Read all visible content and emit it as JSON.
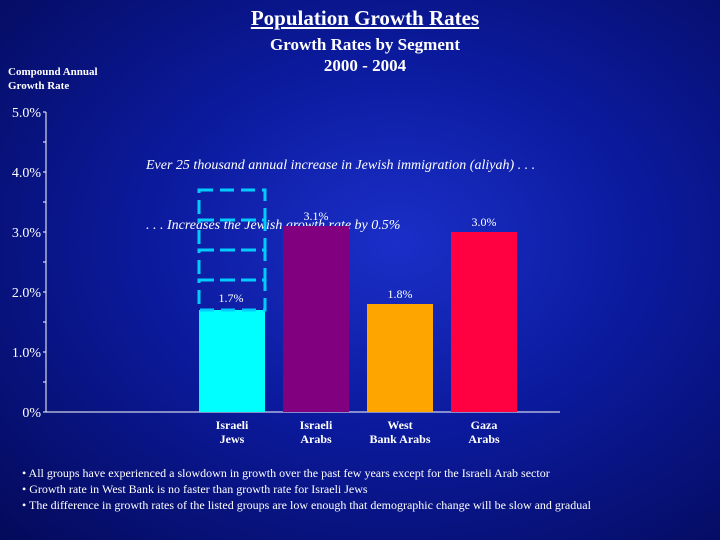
{
  "page": {
    "title": "Population Growth Rates",
    "subtitle_line1": "Growth Rates by Segment",
    "subtitle_line2": "2000 - 2004",
    "ylabel_line1": "Compound Annual",
    "ylabel_line2": "Growth Rate",
    "annotation_line1": "Ever 25 thousand annual increase in Jewish immigration (aliyah) . . .",
    "annotation_line2": ". . . Increases the Jewish growth rate by 0.5%",
    "bullets": [
      "• All groups have experienced a slowdown in growth over the past few years except for the Israeli Arab sector",
      "• Growth rate in West Bank is no faster than growth rate for Israeli Jews",
      "• The difference in growth rates of the listed groups are low enough that demographic change will be slow and gradual"
    ]
  },
  "chart_data": {
    "type": "bar",
    "title": "Population Growth Rates",
    "subtitle": "Growth Rates by Segment 2000 - 2004",
    "ylabel": "Compound Annual Growth Rate",
    "xlabel": "",
    "ylim": [
      0,
      5
    ],
    "yticks": [
      0,
      1,
      2,
      3,
      4,
      5
    ],
    "ytick_labels": [
      "0%",
      "1.0%",
      "2.0%",
      "3.0%",
      "4.0%",
      "5.0%"
    ],
    "categories": [
      [
        "Israeli",
        "Jews"
      ],
      [
        "Israeli",
        "Arabs"
      ],
      [
        "West",
        "Bank Arabs"
      ],
      [
        "Gaza",
        "Arabs"
      ]
    ],
    "values": [
      1.7,
      3.1,
      1.8,
      3.0
    ],
    "value_labels": [
      "1.7%",
      "3.1%",
      "1.8%",
      "3.0%"
    ],
    "colors": [
      "#00ffff",
      "#800080",
      "#ffa500",
      "#ff0040"
    ],
    "projected_segments": {
      "category_index": 0,
      "increment": 0.5,
      "count": 4,
      "color": "#00ccff",
      "style": "dashed"
    }
  }
}
